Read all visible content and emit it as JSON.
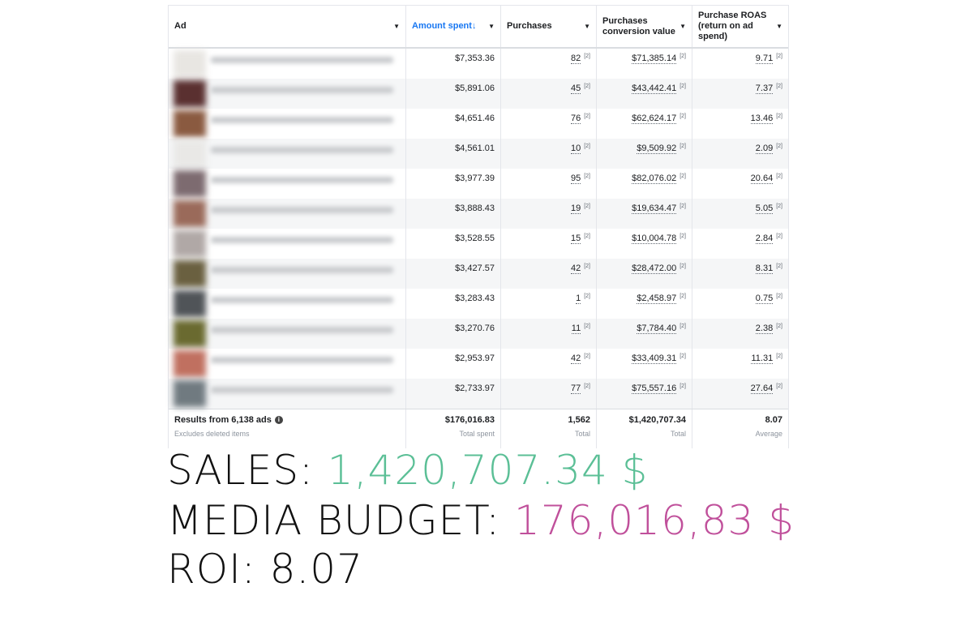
{
  "table": {
    "headers": [
      "Ad",
      "Amount spent",
      "Purchases",
      "Purchases conversion value",
      "Purchase ROAS (return on ad spend)"
    ],
    "sort_indicator": "↓",
    "sup": "[2]",
    "rows": [
      {
        "spent": "$7,353.36",
        "purchases": "82",
        "value": "$71,385.14",
        "roas": "9.71",
        "thumb": "#e8e6e2"
      },
      {
        "spent": "$5,891.06",
        "purchases": "45",
        "value": "$43,442.41",
        "roas": "7.37",
        "thumb": "#5a3030"
      },
      {
        "spent": "$4,651.46",
        "purchases": "76",
        "value": "$62,624.17",
        "roas": "13.46",
        "thumb": "#8a5a40"
      },
      {
        "spent": "$4,561.01",
        "purchases": "10",
        "value": "$9,509.92",
        "roas": "2.09",
        "thumb": "#e9e8e6"
      },
      {
        "spent": "$3,977.39",
        "purchases": "95",
        "value": "$82,076.02",
        "roas": "20.64",
        "thumb": "#7d6b70"
      },
      {
        "spent": "$3,888.43",
        "purchases": "19",
        "value": "$19,634.47",
        "roas": "5.05",
        "thumb": "#9a6a5a"
      },
      {
        "spent": "$3,528.55",
        "purchases": "15",
        "value": "$10,004.78",
        "roas": "2.84",
        "thumb": "#b0a8a6"
      },
      {
        "spent": "$3,427.57",
        "purchases": "42",
        "value": "$28,472.00",
        "roas": "8.31",
        "thumb": "#6a6040"
      },
      {
        "spent": "$3,283.43",
        "purchases": "1",
        "value": "$2,458.97",
        "roas": "0.75",
        "thumb": "#505458"
      },
      {
        "spent": "$3,270.76",
        "purchases": "11",
        "value": "$7,784.40",
        "roas": "2.38",
        "thumb": "#6a6a30"
      },
      {
        "spent": "$2,953.97",
        "purchases": "42",
        "value": "$33,409.31",
        "roas": "11.31",
        "thumb": "#c07060"
      },
      {
        "spent": "$2,733.97",
        "purchases": "77",
        "value": "$75,557.16",
        "roas": "27.64",
        "thumb": "#707a80"
      }
    ],
    "footer": {
      "title": "Results from 6,138 ads",
      "subtitle": "Excludes deleted items",
      "spent": "$176,016.83",
      "spent_label": "Total spent",
      "purchases": "1,562",
      "purchases_label": "Total",
      "value": "$1,420,707.34",
      "value_label": "Total",
      "roas": "8.07",
      "roas_label": "Average"
    }
  },
  "summary": {
    "sales_label": "SALES: ",
    "sales_value": "1,420,707.34 $",
    "budget_label": "MEDIA BUDGET: ",
    "budget_value": "176,016,83 $",
    "roi_label": "ROI: ",
    "roi_value": "8.07"
  },
  "colors": {
    "accent": "#1877f2",
    "sales": "#5bbf96",
    "budget": "#c0509b"
  }
}
